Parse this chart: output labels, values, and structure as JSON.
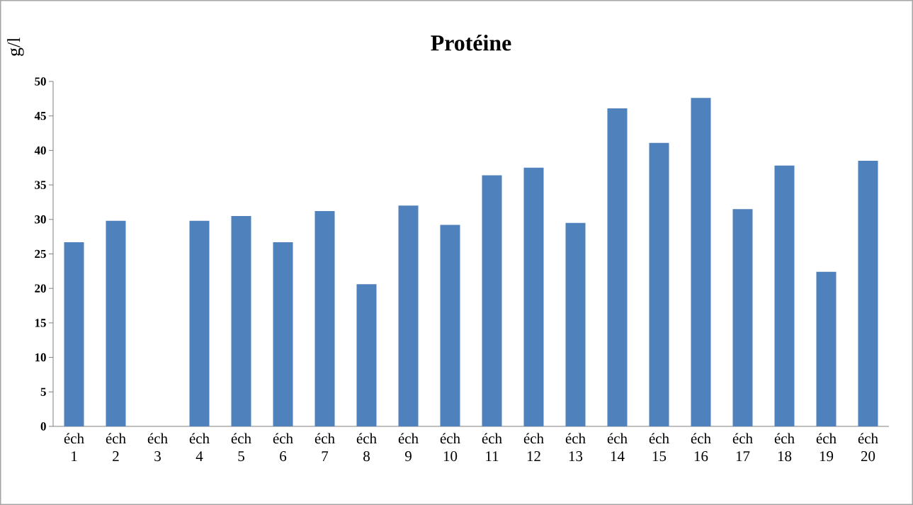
{
  "chart_data": {
    "type": "bar",
    "title": "Protéine",
    "ylabel": "g/l",
    "categories": [
      "éch 1",
      "éch 2",
      "éch 3",
      "éch 4",
      "éch 5",
      "éch 6",
      "éch 7",
      "éch 8",
      "éch 9",
      "éch 10",
      "éch 11",
      "éch 12",
      "éch 13",
      "éch 14",
      "éch 15",
      "éch 16",
      "éch 17",
      "éch 18",
      "éch 19",
      "éch 20"
    ],
    "values": [
      26.7,
      29.8,
      null,
      29.8,
      30.5,
      26.7,
      31.2,
      20.6,
      32.0,
      29.2,
      36.4,
      37.5,
      29.5,
      46.1,
      41.1,
      47.6,
      31.5,
      37.8,
      22.4,
      38.5
    ],
    "color": "#4f81bd",
    "ylim": [
      0,
      50
    ],
    "yticks": [
      0,
      5,
      10,
      15,
      20,
      25,
      30,
      35,
      40,
      45,
      50
    ],
    "grid": false
  }
}
